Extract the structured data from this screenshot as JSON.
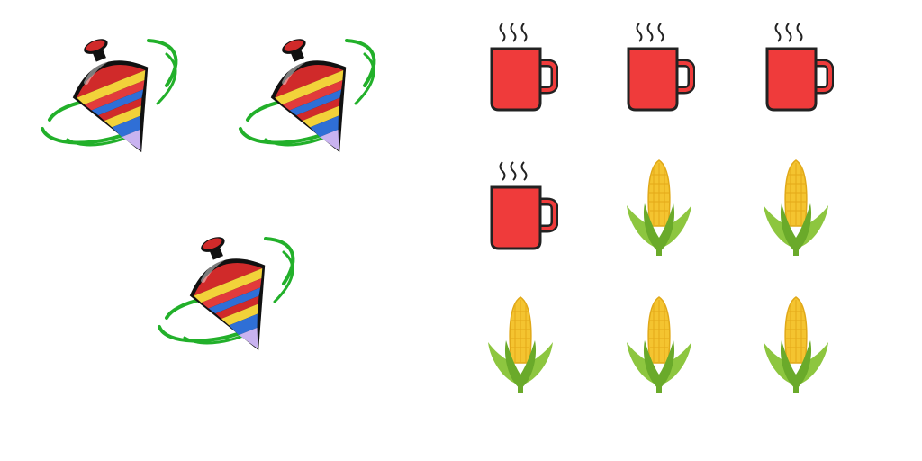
{
  "left_group": {
    "items": [
      {
        "icon": "spinning-top-icon"
      },
      {
        "icon": "spinning-top-icon"
      },
      {
        "icon": "spinning-top-icon"
      }
    ]
  },
  "right_group": {
    "items": [
      {
        "icon": "coffee-mug-icon"
      },
      {
        "icon": "coffee-mug-icon"
      },
      {
        "icon": "coffee-mug-icon"
      },
      {
        "icon": "coffee-mug-icon"
      },
      {
        "icon": "corn-icon"
      },
      {
        "icon": "corn-icon"
      },
      {
        "icon": "corn-icon"
      },
      {
        "icon": "corn-icon"
      },
      {
        "icon": "corn-icon"
      }
    ]
  },
  "colors": {
    "top_red": "#d02a2a",
    "top_stripe_yellow": "#f2d23a",
    "top_stripe_blue": "#2f6fd6",
    "top_swirl_green": "#22b02a",
    "mug_red": "#ef3b3b",
    "corn_yellow": "#f4c430",
    "corn_leaf_green": "#8dc63f"
  }
}
